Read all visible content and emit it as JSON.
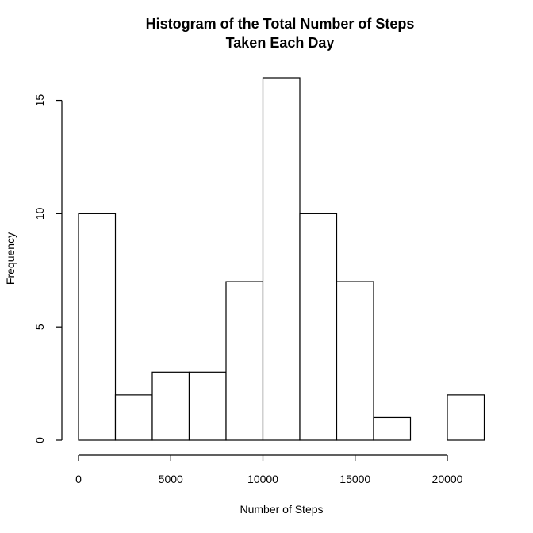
{
  "chart_data": {
    "type": "bar",
    "title_line1": "Histogram of the Total Number of Steps",
    "title_line2": "Taken Each Day",
    "xlabel": "Number of Steps",
    "ylabel": "Frequency",
    "bins": [
      {
        "x0": 0,
        "x1": 2000,
        "count": 10
      },
      {
        "x0": 2000,
        "x1": 4000,
        "count": 2
      },
      {
        "x0": 4000,
        "x1": 6000,
        "count": 3
      },
      {
        "x0": 6000,
        "x1": 8000,
        "count": 3
      },
      {
        "x0": 8000,
        "x1": 10000,
        "count": 7
      },
      {
        "x0": 10000,
        "x1": 12000,
        "count": 16
      },
      {
        "x0": 12000,
        "x1": 14000,
        "count": 10
      },
      {
        "x0": 14000,
        "x1": 16000,
        "count": 7
      },
      {
        "x0": 16000,
        "x1": 18000,
        "count": 1
      },
      {
        "x0": 18000,
        "x1": 20000,
        "count": 0
      },
      {
        "x0": 20000,
        "x1": 22000,
        "count": 2
      }
    ],
    "x_ticks": [
      0,
      5000,
      10000,
      15000,
      20000
    ],
    "y_ticks": [
      0,
      5,
      10,
      15
    ],
    "xlim": [
      0,
      22000
    ],
    "ylim": [
      0,
      16
    ],
    "grid": false,
    "legend": "none"
  }
}
